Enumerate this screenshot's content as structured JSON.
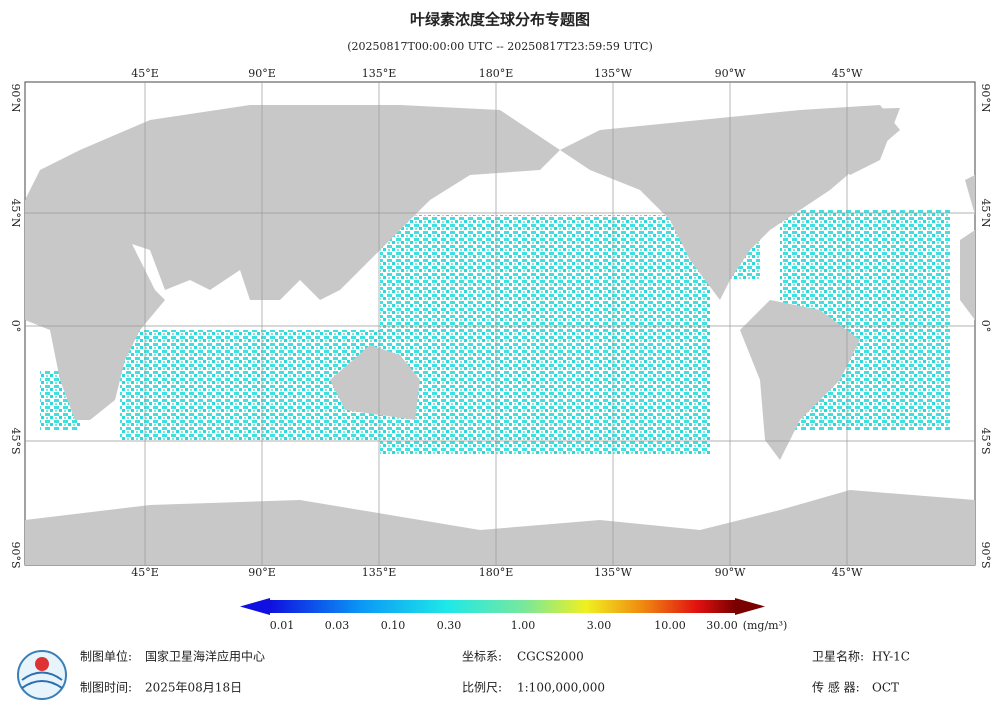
{
  "title": "叶绿素浓度全球分布专题图",
  "subtitle": "(20250817T00:00:00 UTC -- 20250817T23:59:59 UTC)",
  "map": {
    "lon_labels": [
      "45°E",
      "90°E",
      "135°E",
      "180°E",
      "135°W",
      "90°W",
      "45°W"
    ],
    "lat_labels": [
      "90°N",
      "45°N",
      "0°",
      "45°S",
      "90°S"
    ]
  },
  "colorbar": {
    "ticks": [
      "0.01",
      "0.03",
      "0.10",
      "0.30",
      "1.00",
      "3.00",
      "10.00",
      "30.00"
    ],
    "unit": "(mg/m³)"
  },
  "footer": {
    "unit_label": "制图单位:",
    "unit": "国家卫星海洋应用中心",
    "time_label": "制图时间:",
    "time": "2025年08月18日",
    "crs_label": "坐标系:",
    "crs": "CGCS2000",
    "scale_label": "比例尺:",
    "scale": "1:100,000,000",
    "satellite_label": "卫星名称:",
    "satellite": "HY-1C",
    "sensor_label": "传 感 器:",
    "sensor": "OCT"
  }
}
